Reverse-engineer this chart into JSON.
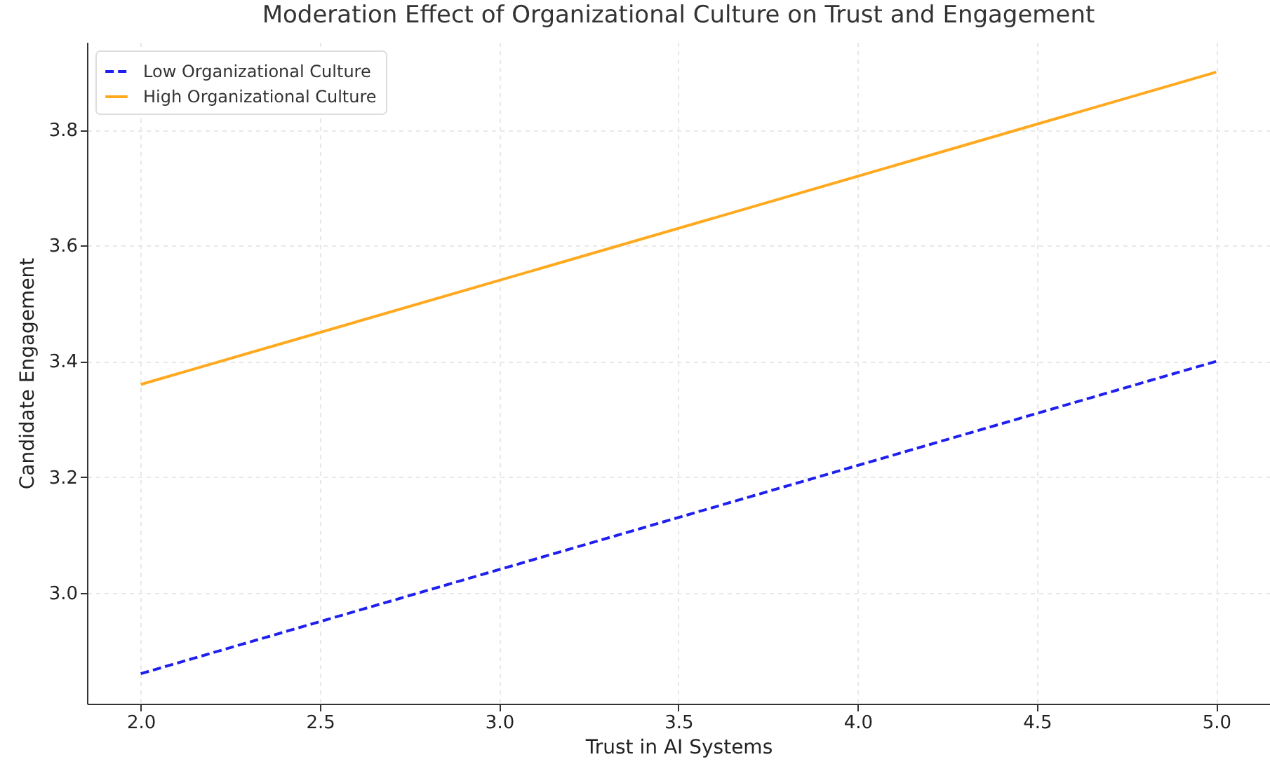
{
  "chart_data": {
    "type": "line",
    "title": "Moderation Effect of Organizational Culture on Trust and Engagement",
    "xlabel": "Trust in AI Systems",
    "ylabel": "Candidate Engagement",
    "x": [
      2.0,
      5.0
    ],
    "series": [
      {
        "name": "Low Organizational Culture",
        "color": "#1f1fee",
        "values": [
          2.86,
          3.4
        ],
        "line_style": "dashed"
      },
      {
        "name": "High Organizational Culture",
        "color": "#ffa91f",
        "values": [
          3.36,
          3.9
        ],
        "line_style": "solid"
      }
    ],
    "xlim": [
      1.85,
      5.15
    ],
    "ylim": [
      2.808,
      3.952
    ],
    "xticks": [
      {
        "value": 2,
        "label": "2.0"
      },
      {
        "value": 2.5,
        "label": "2.5"
      },
      {
        "value": 3,
        "label": "3.0"
      },
      {
        "value": 3.5,
        "label": "3.5"
      },
      {
        "value": 4,
        "label": "4.0"
      },
      {
        "value": 4.5,
        "label": "4.5"
      },
      {
        "value": 5,
        "label": "5.0"
      }
    ],
    "yticks": [
      {
        "value": 3,
        "label": "3.0"
      },
      {
        "value": 3.2,
        "label": "3.2"
      },
      {
        "value": 3.4,
        "label": "3.4"
      },
      {
        "value": 3.6,
        "label": "3.6"
      },
      {
        "value": 3.8,
        "label": "3.8"
      }
    ],
    "grid": true,
    "legend": "top left",
    "marker": "none"
  }
}
